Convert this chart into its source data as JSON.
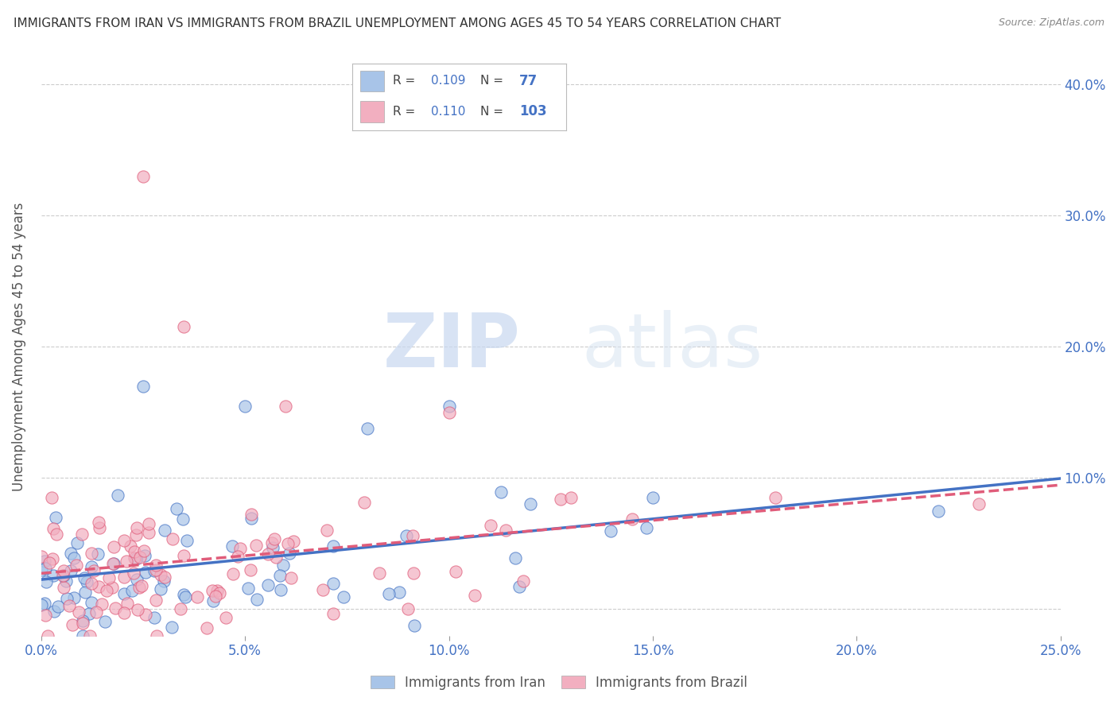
{
  "title": "IMMIGRANTS FROM IRAN VS IMMIGRANTS FROM BRAZIL UNEMPLOYMENT AMONG AGES 45 TO 54 YEARS CORRELATION CHART",
  "source": "Source: ZipAtlas.com",
  "ylabel": "Unemployment Among Ages 45 to 54 years",
  "xlim": [
    0.0,
    0.25
  ],
  "ylim": [
    -0.02,
    0.42
  ],
  "xticks": [
    0.0,
    0.05,
    0.1,
    0.15,
    0.2,
    0.25
  ],
  "yticks": [
    0.0,
    0.1,
    0.2,
    0.3,
    0.4
  ],
  "iran_color": "#a8c4e8",
  "brazil_color": "#f2afc0",
  "iran_edge_color": "#4472C4",
  "brazil_edge_color": "#E05C7A",
  "iran_R": 0.109,
  "iran_N": 77,
  "brazil_R": 0.11,
  "brazil_N": 103,
  "iran_line_color": "#4472C4",
  "brazil_line_color": "#E05C7A",
  "watermark_zip": "ZIP",
  "watermark_atlas": "atlas",
  "legend_iran_label": "Immigrants from Iran",
  "legend_brazil_label": "Immigrants from Brazil",
  "grid_color": "#cccccc",
  "tick_label_color": "#4472C4",
  "ylabel_color": "#555555",
  "title_color": "#333333",
  "source_color": "#888888"
}
